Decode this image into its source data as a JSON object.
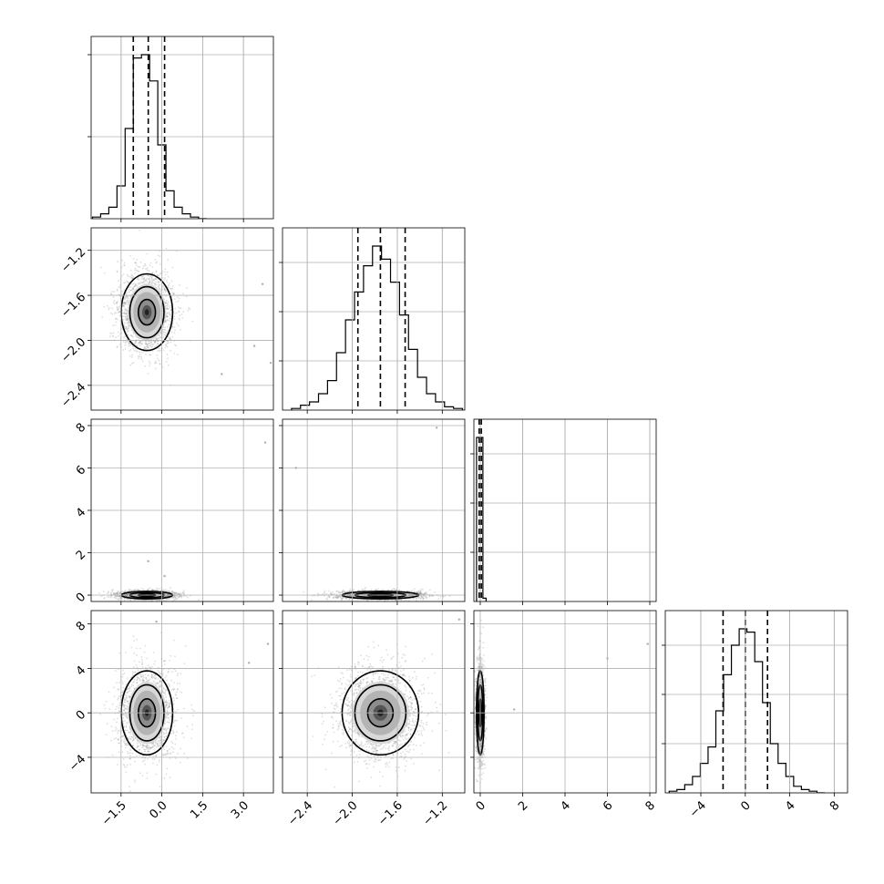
{
  "chart_data": {
    "type": "corner",
    "grid": true,
    "parameters": [
      {
        "range": [
          -2.6,
          4.1
        ],
        "ticks": [
          -1.5,
          0.0,
          1.5,
          3.0
        ],
        "tick_labels": [
          "−1.5",
          "0.0",
          "1.5",
          "3.0"
        ],
        "mean": -0.55,
        "sd": 0.5,
        "quantiles": [
          -1.05,
          -0.5,
          0.1
        ],
        "hist_centers": [
          -2.4,
          -2.1,
          -1.8,
          -1.5,
          -1.2,
          -0.9,
          -0.6,
          -0.3,
          0.0,
          0.3,
          0.6,
          0.9,
          1.2,
          1.5
        ],
        "hist_values": [
          0.01,
          0.03,
          0.07,
          0.2,
          0.55,
          0.98,
          1.0,
          0.84,
          0.45,
          0.17,
          0.07,
          0.03,
          0.01,
          0.0
        ],
        "hist_ticks": [
          0.5,
          1.0
        ]
      },
      {
        "range": [
          -2.62,
          -1.0
        ],
        "ticks": [
          -2.4,
          -2.0,
          -1.6,
          -1.2
        ],
        "tick_labels": [
          "−2.4",
          "−2.0",
          "−1.6",
          "−1.2"
        ],
        "mean": -1.75,
        "sd": 0.18,
        "quantiles": [
          -1.95,
          -1.75,
          -1.53
        ],
        "hist_centers": [
          -2.5,
          -2.42,
          -2.34,
          -2.26,
          -2.18,
          -2.1,
          -2.02,
          -1.94,
          -1.86,
          -1.78,
          -1.7,
          -1.62,
          -1.54,
          -1.46,
          -1.38,
          -1.3,
          -1.22,
          -1.14,
          -1.06
        ],
        "hist_values": [
          0.01,
          0.03,
          0.05,
          0.1,
          0.18,
          0.35,
          0.55,
          0.72,
          0.88,
          1.0,
          0.92,
          0.78,
          0.58,
          0.37,
          0.2,
          0.1,
          0.05,
          0.02,
          0.01
        ],
        "hist_ticks": [
          0.3,
          0.6,
          0.9
        ]
      },
      {
        "range": [
          -0.3,
          8.3
        ],
        "ticks": [
          0,
          2,
          4,
          6,
          8
        ],
        "tick_labels": [
          "0",
          "2",
          "4",
          "6",
          "8"
        ],
        "mean": 0.0,
        "sd": 0.05,
        "quantiles": [
          -0.05,
          0.0,
          0.05
        ],
        "hist_centers": [
          -0.1,
          0.05,
          0.2
        ],
        "hist_values": [
          1.0,
          1.0,
          0.02
        ],
        "hist_ticks": [
          0.3,
          0.6,
          0.9
        ]
      },
      {
        "range": [
          -7.2,
          9.2
        ],
        "ticks": [
          -4,
          0,
          4,
          8
        ],
        "tick_labels": [
          "−4",
          "0",
          "4",
          "8"
        ],
        "mean": 0.0,
        "sd": 2.0,
        "quantiles": [
          -2.0,
          0.0,
          2.0
        ],
        "hist_centers": [
          -6.5,
          -5.8,
          -5.1,
          -4.4,
          -3.7,
          -3.0,
          -2.3,
          -1.6,
          -0.9,
          -0.2,
          0.5,
          1.2,
          1.9,
          2.6,
          3.3,
          4.0,
          4.7,
          5.4,
          6.1,
          6.8
        ],
        "hist_values": [
          0.01,
          0.02,
          0.05,
          0.1,
          0.18,
          0.28,
          0.5,
          0.72,
          0.9,
          1.0,
          0.98,
          0.8,
          0.55,
          0.3,
          0.18,
          0.1,
          0.04,
          0.02,
          0.01,
          0.0
        ],
        "hist_ticks": [
          0.3,
          0.6,
          0.9
        ]
      }
    ],
    "contour_levels_sigma": [
      0.6,
      1.2,
      1.8
    ],
    "outliers": [
      {
        "pair": [
          0,
          1
        ],
        "points": [
          [
            3.7,
            -1.5
          ],
          [
            3.4,
            -2.05
          ],
          [
            4.0,
            -2.2
          ],
          [
            2.2,
            -2.3
          ]
        ]
      },
      {
        "pair": [
          0,
          2
        ],
        "points": [
          [
            3.8,
            7.2
          ],
          [
            -0.5,
            1.6
          ],
          [
            0.1,
            0.9
          ]
        ]
      },
      {
        "pair": [
          1,
          2
        ],
        "points": [
          [
            -1.25,
            7.9
          ],
          [
            -2.5,
            6.0
          ]
        ]
      },
      {
        "pair": [
          0,
          3
        ],
        "points": [
          [
            3.9,
            6.2
          ],
          [
            3.2,
            4.5
          ],
          [
            -0.2,
            8.2
          ]
        ]
      },
      {
        "pair": [
          1,
          3
        ],
        "points": [
          [
            -1.05,
            8.4
          ]
        ]
      },
      {
        "pair": [
          2,
          3
        ],
        "points": [
          [
            6.0,
            4.9
          ],
          [
            7.9,
            6.2
          ],
          [
            1.6,
            0.3
          ]
        ]
      }
    ]
  }
}
